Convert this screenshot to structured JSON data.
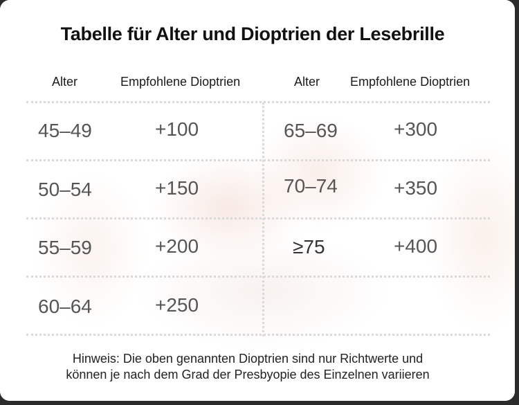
{
  "title": "Tabelle für Alter und Dioptrien der Lesebrille",
  "headers": {
    "age": "Alter",
    "diopters": "Empfohlene Dioptrien"
  },
  "left_rows": [
    {
      "age": "45–49",
      "diopters": "+100"
    },
    {
      "age": "50–54",
      "diopters": "+150"
    },
    {
      "age": "55–59",
      "diopters": "+200"
    },
    {
      "age": "60–64",
      "diopters": "+250"
    }
  ],
  "right_rows": [
    {
      "age": "65–69",
      "diopters": "+300"
    },
    {
      "age": "70–74",
      "diopters": "+350"
    },
    {
      "age": "≥75",
      "diopters": "+400"
    }
  ],
  "note": {
    "line1": "Hinweis: Die oben genannten Dioptrien sind nur Richtwerte und",
    "line2": "können je nach dem Grad der Presbyopie des Einzelnen variieren"
  }
}
